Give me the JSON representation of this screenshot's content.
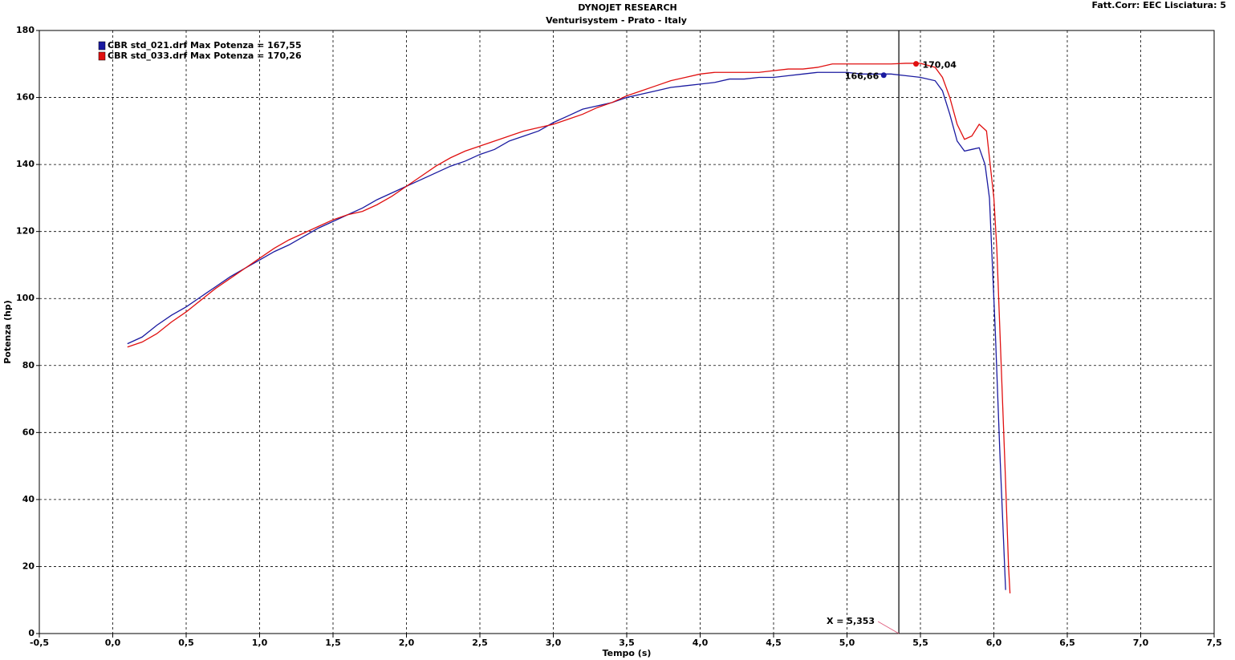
{
  "chart_data": {
    "type": "line",
    "title": "DYNOJET RESEARCH",
    "subtitle": "Venturisystem - Prato - Italy",
    "corner_note": "Fatt.Corr: EEC  Lisciatura: 5",
    "x_label": "Tempo (s)",
    "y_label": "Potenza (hp)",
    "xlim": [
      -0.5,
      7.5
    ],
    "ylim": [
      0,
      180
    ],
    "xticks": [
      {
        "value": -0.5,
        "label": "-0,5"
      },
      {
        "value": 0,
        "label": "0,0"
      },
      {
        "value": 0.5,
        "label": "0,5"
      },
      {
        "value": 1,
        "label": "1,0"
      },
      {
        "value": 1.5,
        "label": "1,5"
      },
      {
        "value": 2,
        "label": "2,0"
      },
      {
        "value": 2.5,
        "label": "2,5"
      },
      {
        "value": 3,
        "label": "3,0"
      },
      {
        "value": 3.5,
        "label": "3,5"
      },
      {
        "value": 4,
        "label": "4,0"
      },
      {
        "value": 4.5,
        "label": "4,5"
      },
      {
        "value": 5,
        "label": "5,0"
      },
      {
        "value": 5.5,
        "label": "5,5"
      },
      {
        "value": 6,
        "label": "6,0"
      },
      {
        "value": 6.5,
        "label": "6,5"
      },
      {
        "value": 7,
        "label": "7,0"
      },
      {
        "value": 7.5,
        "label": "7,5"
      }
    ],
    "yticks": [
      0,
      20,
      40,
      60,
      80,
      100,
      120,
      140,
      160,
      180
    ],
    "grid": true,
    "legend": "top-left",
    "series": [
      {
        "name": "CBR std_021.drf Max Potenza = 167,55",
        "color": "#1a1aa0",
        "x": [
          0.1,
          0.2,
          0.3,
          0.4,
          0.5,
          0.6,
          0.7,
          0.8,
          0.9,
          1.0,
          1.1,
          1.2,
          1.3,
          1.4,
          1.5,
          1.6,
          1.7,
          1.8,
          1.9,
          2.0,
          2.1,
          2.2,
          2.3,
          2.4,
          2.5,
          2.6,
          2.7,
          2.8,
          2.9,
          3.0,
          3.1,
          3.2,
          3.3,
          3.4,
          3.5,
          3.6,
          3.7,
          3.8,
          3.9,
          4.0,
          4.1,
          4.2,
          4.3,
          4.4,
          4.5,
          4.6,
          4.7,
          4.8,
          4.9,
          5.0,
          5.1,
          5.2,
          5.3,
          5.4,
          5.5,
          5.6,
          5.65,
          5.7,
          5.75,
          5.8,
          5.85,
          5.9,
          5.94,
          5.97,
          6.0,
          6.01,
          6.04,
          6.08
        ],
        "values": [
          86.5,
          88.5,
          92,
          95,
          97.5,
          100.5,
          103.5,
          106.5,
          109,
          111.5,
          114,
          116,
          118.5,
          121,
          123,
          125,
          127,
          129.5,
          131.5,
          133.5,
          135.5,
          137.5,
          139.5,
          141,
          143,
          144.5,
          147,
          148.5,
          150,
          152.5,
          154.5,
          156.5,
          157.5,
          158.5,
          160,
          161,
          162,
          163,
          163.5,
          164,
          164.5,
          165.5,
          165.5,
          166,
          166,
          166.5,
          167,
          167.5,
          167.5,
          167.5,
          167,
          167,
          167,
          166.5,
          166,
          165,
          162,
          155,
          147,
          144,
          144.5,
          145,
          140,
          130,
          100,
          90,
          55,
          13
        ]
      },
      {
        "name": "CBR std_033.drf Max Potenza = 170,26",
        "color": "#e01010",
        "x": [
          0.1,
          0.2,
          0.3,
          0.4,
          0.5,
          0.6,
          0.7,
          0.8,
          0.9,
          1.0,
          1.1,
          1.2,
          1.3,
          1.4,
          1.5,
          1.6,
          1.7,
          1.8,
          1.9,
          2.0,
          2.1,
          2.2,
          2.3,
          2.4,
          2.5,
          2.6,
          2.7,
          2.8,
          2.9,
          3.0,
          3.1,
          3.2,
          3.3,
          3.4,
          3.5,
          3.6,
          3.7,
          3.8,
          3.9,
          4.0,
          4.1,
          4.2,
          4.3,
          4.4,
          4.5,
          4.6,
          4.7,
          4.8,
          4.9,
          5.0,
          5.1,
          5.2,
          5.3,
          5.4,
          5.5,
          5.6,
          5.65,
          5.7,
          5.75,
          5.8,
          5.85,
          5.9,
          5.95,
          6.0,
          6.02,
          6.05,
          6.08,
          6.1,
          6.11
        ],
        "values": [
          85.5,
          87,
          89.5,
          93,
          96,
          99.5,
          103,
          106,
          109,
          112,
          115,
          117.5,
          119.5,
          121.5,
          123.5,
          125,
          126,
          128,
          130.5,
          133.5,
          136.5,
          139.5,
          142,
          144,
          145.5,
          147,
          148.5,
          150,
          151,
          152,
          153.5,
          155,
          157,
          158.5,
          160.5,
          162,
          163.5,
          165,
          166,
          167,
          167.5,
          167.5,
          167.5,
          167.5,
          168,
          168.5,
          168.5,
          169,
          170,
          170,
          170,
          170,
          170,
          170.2,
          170.2,
          169,
          166,
          160,
          152,
          147.5,
          148.5,
          152,
          150,
          130,
          115,
          80,
          45,
          20,
          12
        ]
      }
    ],
    "markers": [
      {
        "x": 5.25,
        "y": 166.66,
        "label": "166,66",
        "color": "#1a1aa0"
      },
      {
        "x": 5.47,
        "y": 170.04,
        "label": "170,04",
        "color": "#e01010"
      }
    ],
    "cursor": {
      "x": 5.353,
      "label": "X = 5,353"
    }
  }
}
